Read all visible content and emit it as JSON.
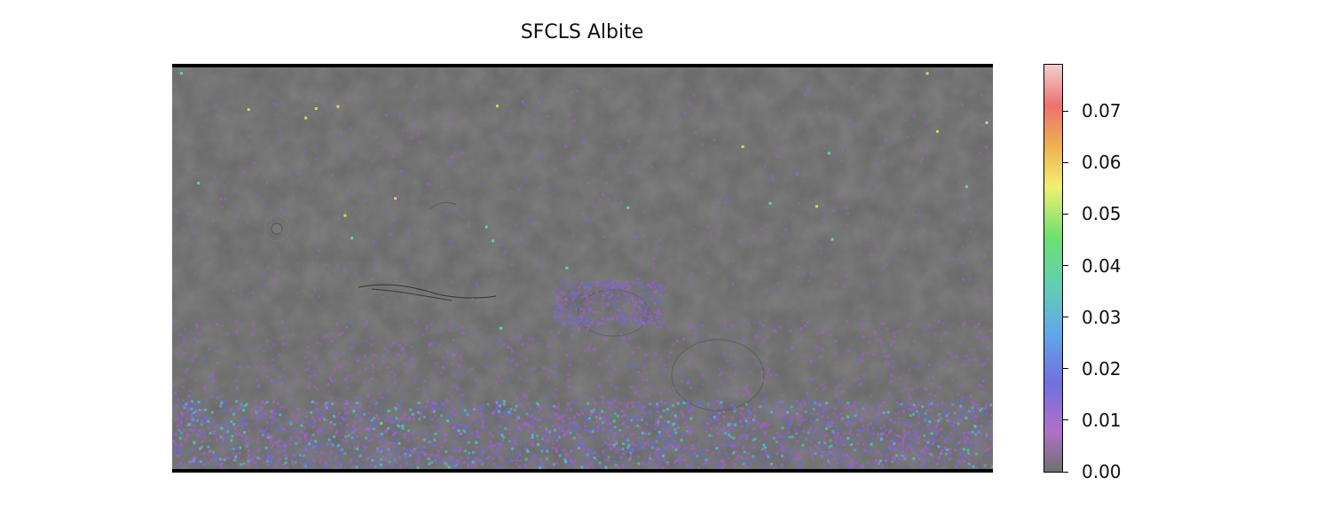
{
  "title": "SFCLS Albite",
  "colorbar": {
    "ticks": [
      "0.00",
      "0.01",
      "0.02",
      "0.03",
      "0.04",
      "0.05",
      "0.06",
      "0.07"
    ],
    "min": 0.0,
    "max": 0.079,
    "colors": [
      "#6a6a6a",
      "#b060c0",
      "#7a60d8",
      "#60b0e0",
      "#60d090",
      "#60e060",
      "#f0f060",
      "#f0a040",
      "#f06060",
      "#f0b0b0"
    ]
  },
  "map": {
    "base_color": "#6a6a6a",
    "overlay_color_low": "#a060c8",
    "overlay_color_mid": "#6a6ad8",
    "overlay_color_high": "#50c0c0"
  }
}
